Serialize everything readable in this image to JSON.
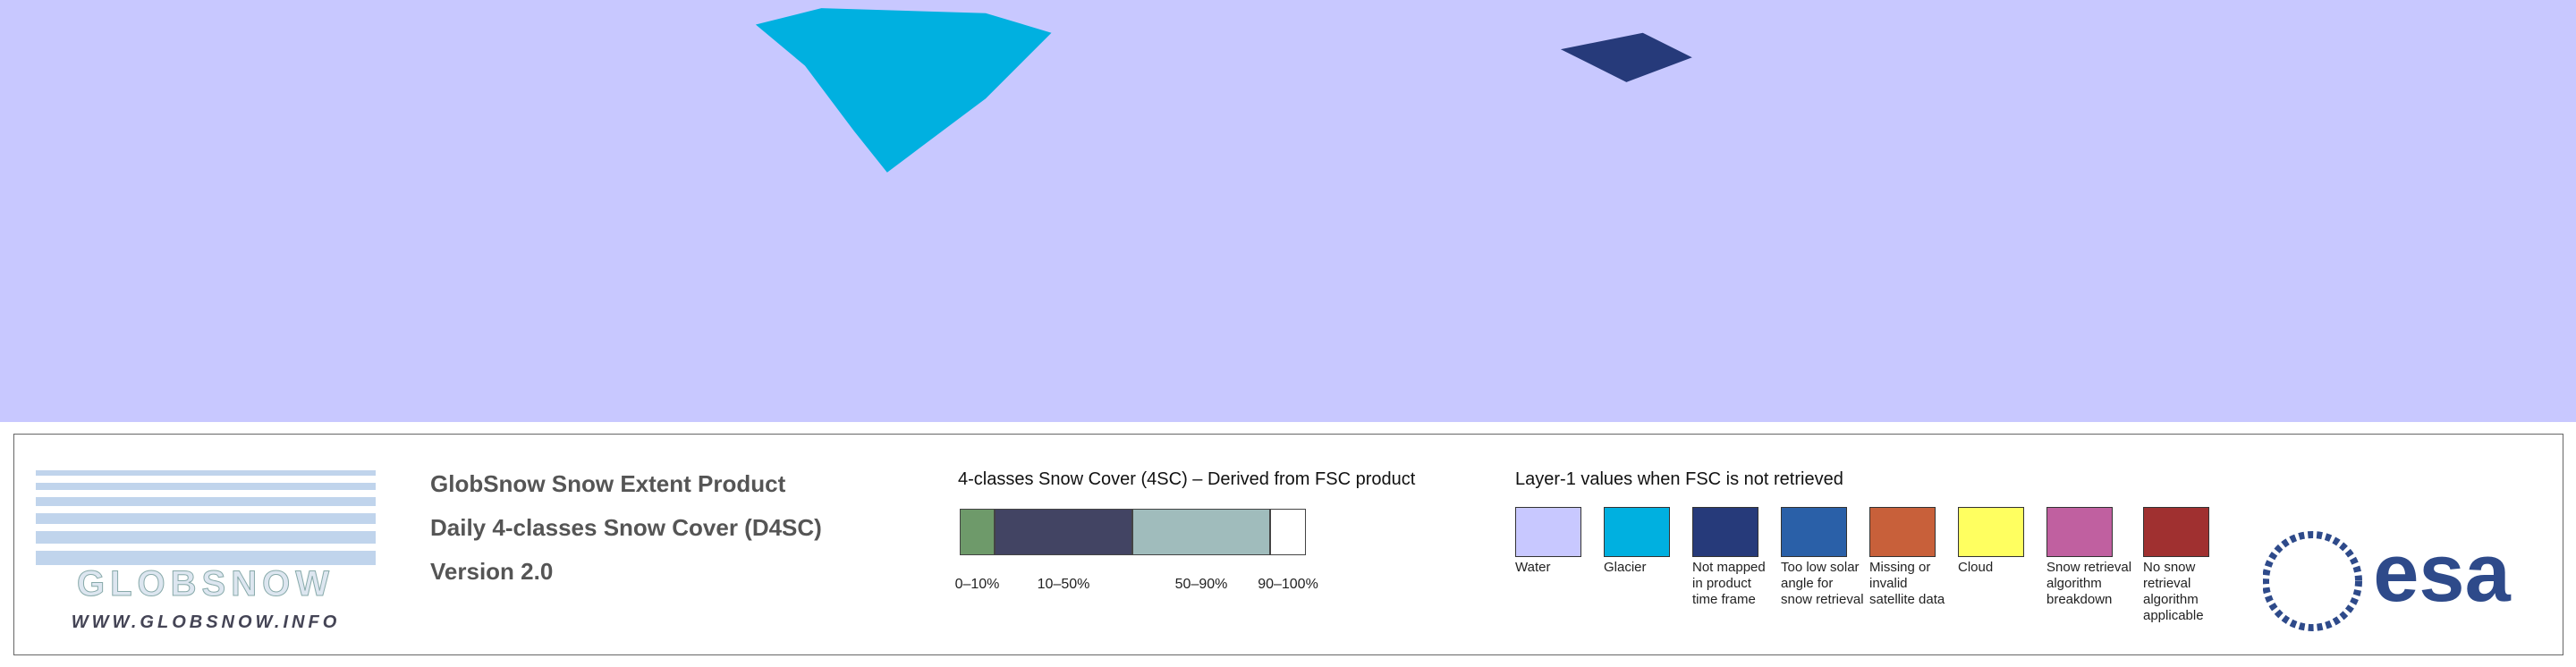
{
  "header": {
    "title": "GlobSnow Snow Extent Product",
    "product": "Daily 4-classes Snow Cover (D4SC)",
    "version": "Version 2.0"
  },
  "logo": {
    "name": "GLOBSNOW",
    "url": "WWW.GLOBSNOW.INFO"
  },
  "esa_logo": "esa",
  "snow_cover_legend": {
    "title": "4-classes Snow Cover (4SC) – Derived from FSC product",
    "classes": [
      {
        "label": "0–10%",
        "color": "#6e9a6a"
      },
      {
        "label": "10–50%",
        "color": "#424463"
      },
      {
        "label": "50–90%",
        "color": "#a0bcbc"
      },
      {
        "label": "90–100%",
        "color": "#ffffff"
      }
    ]
  },
  "layer1_legend": {
    "title": "Layer-1 values when FSC is not retrieved",
    "items": [
      {
        "label": "Water",
        "color": "#c8c8ff"
      },
      {
        "label": "Glacier",
        "color": "#00b0e0"
      },
      {
        "label": "Not mapped in product time frame",
        "color": "#263a7a"
      },
      {
        "label": "Too low solar angle for snow retrieval",
        "color": "#2a60a8"
      },
      {
        "label": "Missing or invalid satellite data",
        "color": "#c8603a"
      },
      {
        "label": "Cloud",
        "color": "#ffff60"
      },
      {
        "label": "Snow retrieval algorithm breakdown",
        "color": "#c060a0"
      },
      {
        "label": "No snow retrieval algorithm applicable",
        "color": "#a03030"
      }
    ]
  }
}
